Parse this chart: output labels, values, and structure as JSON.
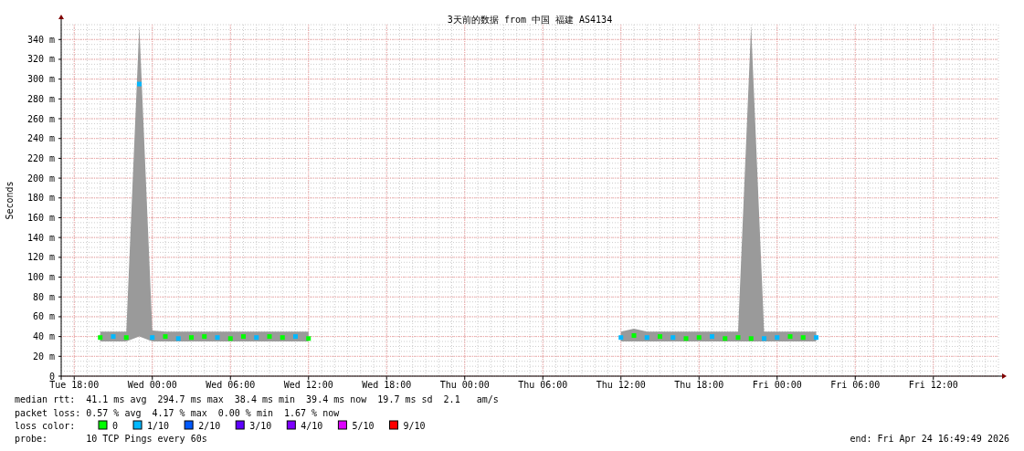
{
  "chart_data": {
    "type": "scatter",
    "title": "3天前的数据 from 中国 福建 AS4134",
    "ylabel": "Seconds",
    "legend_title": "loss color:",
    "legend": "bottom",
    "grid": true,
    "marker": "square",
    "xlim": [
      "2026-04-21T17:00",
      "2026-04-24T17:00"
    ],
    "ylim": [
      0,
      355
    ],
    "xticks": [
      {
        "value": "2026-04-21T18:00",
        "label": "Tue 18:00"
      },
      {
        "value": "2026-04-22T00:00",
        "label": "Wed 00:00"
      },
      {
        "value": "2026-04-22T06:00",
        "label": "Wed 06:00"
      },
      {
        "value": "2026-04-22T12:00",
        "label": "Wed 12:00"
      },
      {
        "value": "2026-04-22T18:00",
        "label": "Wed 18:00"
      },
      {
        "value": "2026-04-23T00:00",
        "label": "Thu 00:00"
      },
      {
        "value": "2026-04-23T06:00",
        "label": "Thu 06:00"
      },
      {
        "value": "2026-04-23T12:00",
        "label": "Thu 12:00"
      },
      {
        "value": "2026-04-23T18:00",
        "label": "Thu 18:00"
      },
      {
        "value": "2026-04-24T00:00",
        "label": "Fri 00:00"
      },
      {
        "value": "2026-04-24T06:00",
        "label": "Fri 06:00"
      },
      {
        "value": "2026-04-24T12:00",
        "label": "Fri 12:00"
      }
    ],
    "yticks": [
      0,
      {
        "value": 20,
        "label": "20 m"
      },
      {
        "value": 40,
        "label": "40 m"
      },
      {
        "value": 60,
        "label": "60 m"
      },
      {
        "value": 80,
        "label": "80 m"
      },
      {
        "value": 100,
        "label": "100 m"
      },
      {
        "value": 120,
        "label": "120 m"
      },
      {
        "value": 140,
        "label": "140 m"
      },
      {
        "value": 160,
        "label": "160 m"
      },
      {
        "value": 180,
        "label": "180 m"
      },
      {
        "value": 200,
        "label": "200 m"
      },
      {
        "value": 220,
        "label": "220 m"
      },
      {
        "value": 240,
        "label": "240 m"
      },
      {
        "value": 260,
        "label": "260 m"
      },
      {
        "value": 280,
        "label": "280 m"
      },
      {
        "value": 300,
        "label": "300 m"
      },
      {
        "value": 320,
        "label": "320 m"
      },
      {
        "value": 340,
        "label": "340 m"
      }
    ],
    "x": [
      "2026-04-21T20:00",
      "2026-04-21T21:00",
      "2026-04-21T22:00",
      "2026-04-21T23:00",
      "2026-04-22T00:00",
      "2026-04-22T01:00",
      "2026-04-22T02:00",
      "2026-04-22T03:00",
      "2026-04-22T04:00",
      "2026-04-22T05:00",
      "2026-04-22T06:00",
      "2026-04-22T07:00",
      "2026-04-22T08:00",
      "2026-04-22T09:00",
      "2026-04-22T10:00",
      "2026-04-22T11:00",
      "2026-04-22T12:00",
      "2026-04-23T12:00",
      "2026-04-23T13:00",
      "2026-04-23T14:00",
      "2026-04-23T15:00",
      "2026-04-23T16:00",
      "2026-04-23T17:00",
      "2026-04-23T18:00",
      "2026-04-23T19:00",
      "2026-04-23T20:00",
      "2026-04-23T21:00",
      "2026-04-23T22:00",
      "2026-04-23T23:00",
      "2026-04-24T00:00",
      "2026-04-24T01:00",
      "2026-04-24T02:00",
      "2026-04-24T03:00"
    ],
    "series": [
      {
        "name": "0",
        "color": "#00ff00",
        "values": [
          39,
          null,
          39,
          null,
          null,
          40,
          null,
          39,
          40,
          null,
          38,
          40,
          null,
          40,
          39,
          null,
          38,
          null,
          41,
          null,
          40,
          null,
          38,
          39,
          null,
          38,
          39,
          38,
          null,
          null,
          40,
          39,
          null
        ],
        "lower": [
          35,
          35,
          35,
          40,
          35,
          35,
          35,
          35,
          35,
          35,
          35,
          35,
          35,
          35,
          35,
          35,
          35,
          35,
          35,
          35,
          35,
          35,
          35,
          35,
          35,
          35,
          35,
          35,
          35,
          35,
          35,
          35,
          35
        ],
        "upper": [
          45,
          45,
          45,
          354,
          46,
          45,
          45,
          45,
          45,
          45,
          45,
          45,
          45,
          45,
          45,
          45,
          45,
          45,
          48,
          45,
          45,
          45,
          45,
          45,
          45,
          45,
          45,
          354,
          45,
          45,
          45,
          45,
          45
        ]
      },
      {
        "name": "1/10",
        "color": "#00b8ff",
        "values": [
          null,
          40,
          null,
          295,
          39,
          null,
          38,
          null,
          null,
          39,
          null,
          null,
          39,
          null,
          null,
          40,
          null,
          39,
          null,
          39,
          null,
          39,
          null,
          null,
          40,
          null,
          null,
          null,
          38,
          39,
          null,
          null,
          39
        ]
      },
      {
        "name": "2/10",
        "color": "#0059ff",
        "values": [
          null,
          null,
          null,
          null,
          null,
          null,
          null,
          null,
          null,
          null,
          null,
          null,
          null,
          null,
          null,
          null,
          null,
          null,
          null,
          null,
          null,
          null,
          null,
          null,
          null,
          null,
          null,
          null,
          null,
          null,
          null,
          null,
          null
        ]
      },
      {
        "name": "3/10",
        "color": "#5e00ff",
        "values": [
          null,
          null,
          null,
          null,
          null,
          null,
          null,
          null,
          null,
          null,
          null,
          null,
          null,
          null,
          null,
          null,
          null,
          null,
          null,
          null,
          null,
          null,
          null,
          null,
          null,
          null,
          null,
          null,
          null,
          null,
          null,
          null,
          null
        ]
      },
      {
        "name": "4/10",
        "color": "#7e00ff",
        "values": [
          null,
          null,
          null,
          null,
          null,
          null,
          null,
          null,
          null,
          null,
          null,
          null,
          null,
          null,
          null,
          null,
          null,
          null,
          null,
          null,
          null,
          null,
          null,
          null,
          null,
          null,
          null,
          null,
          null,
          null,
          null,
          null,
          null
        ]
      },
      {
        "name": "5/10",
        "color": "#dd00ff",
        "values": [
          null,
          null,
          null,
          null,
          null,
          null,
          null,
          null,
          null,
          null,
          null,
          null,
          null,
          null,
          null,
          null,
          null,
          null,
          null,
          null,
          null,
          null,
          null,
          null,
          null,
          null,
          null,
          null,
          null,
          null,
          null,
          null,
          null
        ]
      },
      {
        "name": "9/10",
        "color": "#ff0000",
        "values": [
          null,
          null,
          null,
          null,
          null,
          null,
          null,
          null,
          null,
          null,
          null,
          null,
          null,
          null,
          null,
          null,
          null,
          null,
          null,
          null,
          null,
          null,
          null,
          null,
          null,
          null,
          null,
          null,
          null,
          null,
          null,
          null,
          null
        ]
      }
    ],
    "annotations": [
      "median rtt:  41.1 ms avg  294.7 ms max  38.4 ms min  39.4 ms now  19.7 ms sd  2.1   am/s",
      "packet loss: 0.57 % avg  4.17 % max  0.00 % min  1.67 % now",
      "probe:       10 TCP Pings every 60s",
      "end: Fri Apr 24 16:49:49 2026"
    ]
  }
}
